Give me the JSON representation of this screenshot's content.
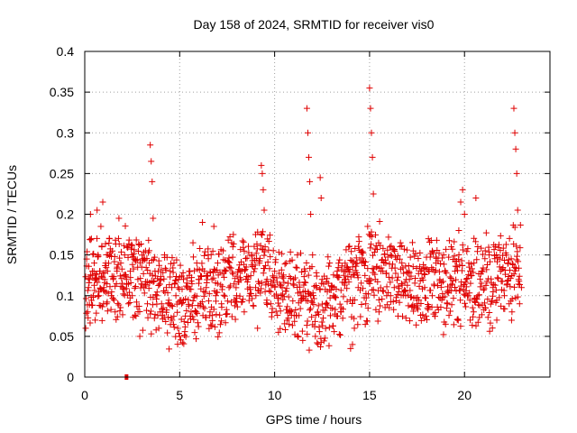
{
  "chart_data": {
    "type": "scatter",
    "title": "Day 158 of 2024, SRMTID for receiver vis0",
    "xlabel": "GPS time / hours",
    "ylabel": "SRMTID / TECUs",
    "xlim": [
      0,
      24.5
    ],
    "ylim": [
      0,
      0.4
    ],
    "xticks": [
      0,
      5,
      10,
      15,
      20
    ],
    "xtick_labels": [
      "0",
      "5",
      "10",
      "15",
      "20"
    ],
    "yticks": [
      0,
      0.05,
      0.1,
      0.15,
      0.2,
      0.25,
      0.3,
      0.35,
      0.4
    ],
    "ytick_labels": [
      "0",
      "0.05",
      "0.1",
      "0.15",
      "0.2",
      "0.25",
      "0.3",
      "0.35",
      "0.4"
    ],
    "grid": true,
    "marker": "+",
    "color": "#e00000",
    "series": [
      {
        "name": "vis0",
        "points": [
          [
            0.05,
            0.06
          ],
          [
            0.1,
            0.145
          ],
          [
            0.15,
            0.08
          ],
          [
            0.2,
            0.11
          ],
          [
            0.25,
            0.12
          ],
          [
            0.3,
            0.2
          ],
          [
            0.35,
            0.17
          ],
          [
            0.4,
            0.13
          ],
          [
            0.45,
            0.1
          ],
          [
            0.5,
            0.14
          ],
          [
            0.55,
            0.07
          ],
          [
            0.6,
            0.12
          ],
          [
            0.65,
            0.205
          ],
          [
            0.7,
            0.15
          ],
          [
            0.75,
            0.1
          ],
          [
            0.8,
            0.13
          ],
          [
            0.85,
            0.185
          ],
          [
            0.9,
            0.16
          ],
          [
            0.95,
            0.215
          ],
          [
            1.0,
            0.11
          ],
          [
            1.05,
            0.12
          ],
          [
            1.1,
            0.14
          ],
          [
            1.15,
            0.09
          ],
          [
            1.2,
            0.13
          ],
          [
            1.3,
            0.17
          ],
          [
            1.4,
            0.1
          ],
          [
            1.5,
            0.12
          ],
          [
            1.6,
            0.08
          ],
          [
            1.7,
            0.13
          ],
          [
            1.8,
            0.195
          ],
          [
            1.9,
            0.14
          ],
          [
            2.0,
            0.11
          ],
          [
            2.1,
            0.15
          ],
          [
            2.2,
            0.12
          ],
          [
            2.3,
            0.09
          ],
          [
            2.4,
            0.13
          ],
          [
            2.5,
            0.1
          ],
          [
            2.6,
            0.145
          ],
          [
            2.7,
            0.075
          ],
          [
            2.8,
            0.12
          ],
          [
            2.9,
            0.05
          ],
          [
            3.0,
            0.135
          ],
          [
            3.1,
            0.11
          ],
          [
            3.2,
            0.155
          ],
          [
            3.3,
            0.09
          ],
          [
            3.4,
            0.14
          ],
          [
            3.45,
            0.285
          ],
          [
            3.5,
            0.265
          ],
          [
            3.55,
            0.24
          ],
          [
            3.6,
            0.195
          ],
          [
            3.7,
            0.13
          ],
          [
            3.8,
            0.1
          ],
          [
            3.9,
            0.06
          ],
          [
            4.0,
            0.12
          ],
          [
            4.1,
            0.08
          ],
          [
            4.2,
            0.15
          ],
          [
            4.3,
            0.11
          ],
          [
            4.4,
            0.09
          ],
          [
            4.5,
            0.13
          ],
          [
            4.6,
            0.07
          ],
          [
            4.7,
            0.14
          ],
          [
            4.8,
            0.1
          ],
          [
            4.9,
            0.06
          ],
          [
            5.0,
            0.05
          ],
          [
            5.1,
            0.09
          ],
          [
            5.2,
            0.12
          ],
          [
            5.3,
            0.075
          ],
          [
            5.4,
            0.11
          ],
          [
            5.5,
            0.13
          ],
          [
            5.6,
            0.08
          ],
          [
            5.7,
            0.165
          ],
          [
            5.8,
            0.1
          ],
          [
            5.9,
            0.14
          ],
          [
            6.0,
            0.12
          ],
          [
            6.1,
            0.09
          ],
          [
            6.2,
            0.19
          ],
          [
            6.3,
            0.13
          ],
          [
            6.4,
            0.11
          ],
          [
            6.5,
            0.15
          ],
          [
            6.6,
            0.08
          ],
          [
            6.7,
            0.12
          ],
          [
            6.8,
            0.185
          ],
          [
            6.9,
            0.1
          ],
          [
            7.0,
            0.14
          ],
          [
            7.2,
            0.09
          ],
          [
            7.4,
            0.13
          ],
          [
            7.6,
            0.11
          ],
          [
            7.8,
            0.16
          ],
          [
            8.0,
            0.1
          ],
          [
            8.2,
            0.13
          ],
          [
            8.4,
            0.08
          ],
          [
            8.6,
            0.12
          ],
          [
            8.8,
            0.15
          ],
          [
            9.0,
            0.11
          ],
          [
            9.1,
            0.06
          ],
          [
            9.2,
            0.14
          ],
          [
            9.3,
            0.26
          ],
          [
            9.35,
            0.25
          ],
          [
            9.4,
            0.23
          ],
          [
            9.45,
            0.205
          ],
          [
            9.5,
            0.16
          ],
          [
            9.6,
            0.12
          ],
          [
            9.8,
            0.09
          ],
          [
            10.0,
            0.13
          ],
          [
            10.2,
            0.055
          ],
          [
            10.4,
            0.11
          ],
          [
            10.6,
            0.14
          ],
          [
            10.8,
            0.08
          ],
          [
            11.0,
            0.12
          ],
          [
            11.2,
            0.15
          ],
          [
            11.4,
            0.1
          ],
          [
            11.6,
            0.13
          ],
          [
            11.7,
            0.33
          ],
          [
            11.75,
            0.3
          ],
          [
            11.8,
            0.27
          ],
          [
            11.85,
            0.24
          ],
          [
            11.9,
            0.2
          ],
          [
            12.0,
            0.15
          ],
          [
            12.2,
            0.11
          ],
          [
            12.4,
            0.245
          ],
          [
            12.45,
            0.22
          ],
          [
            12.5,
            0.12
          ],
          [
            12.7,
            0.09
          ],
          [
            12.9,
            0.14
          ],
          [
            13.1,
            0.1
          ],
          [
            13.3,
            0.13
          ],
          [
            13.5,
            0.08
          ],
          [
            13.7,
            0.12
          ],
          [
            13.9,
            0.16
          ],
          [
            14.0,
            0.035
          ],
          [
            14.1,
            0.04
          ],
          [
            14.2,
            0.06
          ],
          [
            14.4,
            0.11
          ],
          [
            14.6,
            0.14
          ],
          [
            14.8,
            0.09
          ],
          [
            14.9,
            0.185
          ],
          [
            15.0,
            0.355
          ],
          [
            15.05,
            0.33
          ],
          [
            15.1,
            0.3
          ],
          [
            15.15,
            0.27
          ],
          [
            15.2,
            0.225
          ],
          [
            15.3,
            0.12
          ],
          [
            15.5,
            0.08
          ],
          [
            15.7,
            0.13
          ],
          [
            15.9,
            0.1
          ],
          [
            16.1,
            0.15
          ],
          [
            16.3,
            0.11
          ],
          [
            16.5,
            0.075
          ],
          [
            16.7,
            0.14
          ],
          [
            16.9,
            0.1
          ],
          [
            17.1,
            0.12
          ],
          [
            17.3,
            0.155
          ],
          [
            17.5,
            0.09
          ],
          [
            17.7,
            0.13
          ],
          [
            17.9,
            0.11
          ],
          [
            18.1,
            0.17
          ],
          [
            18.3,
            0.1
          ],
          [
            18.5,
            0.14
          ],
          [
            18.7,
            0.12
          ],
          [
            18.9,
            0.15
          ],
          [
            19.1,
            0.09
          ],
          [
            19.3,
            0.16
          ],
          [
            19.5,
            0.13
          ],
          [
            19.7,
            0.18
          ],
          [
            19.8,
            0.215
          ],
          [
            19.9,
            0.23
          ],
          [
            20.0,
            0.2
          ],
          [
            20.1,
            0.12
          ],
          [
            20.3,
            0.07
          ],
          [
            20.5,
            0.14
          ],
          [
            20.6,
            0.22
          ],
          [
            20.7,
            0.1
          ],
          [
            20.9,
            0.13
          ],
          [
            21.1,
            0.085
          ],
          [
            21.3,
            0.15
          ],
          [
            21.5,
            0.11
          ],
          [
            21.7,
            0.07
          ],
          [
            21.9,
            0.13
          ],
          [
            22.1,
            0.1
          ],
          [
            22.3,
            0.14
          ],
          [
            22.5,
            0.08
          ],
          [
            22.6,
            0.33
          ],
          [
            22.65,
            0.3
          ],
          [
            22.7,
            0.28
          ],
          [
            22.75,
            0.25
          ],
          [
            22.8,
            0.205
          ],
          [
            22.85,
            0.12
          ],
          [
            22.9,
            0.09
          ],
          [
            23.0,
            0.11
          ]
        ]
      }
    ],
    "outlier": [
      2.2,
      0.0
    ]
  }
}
